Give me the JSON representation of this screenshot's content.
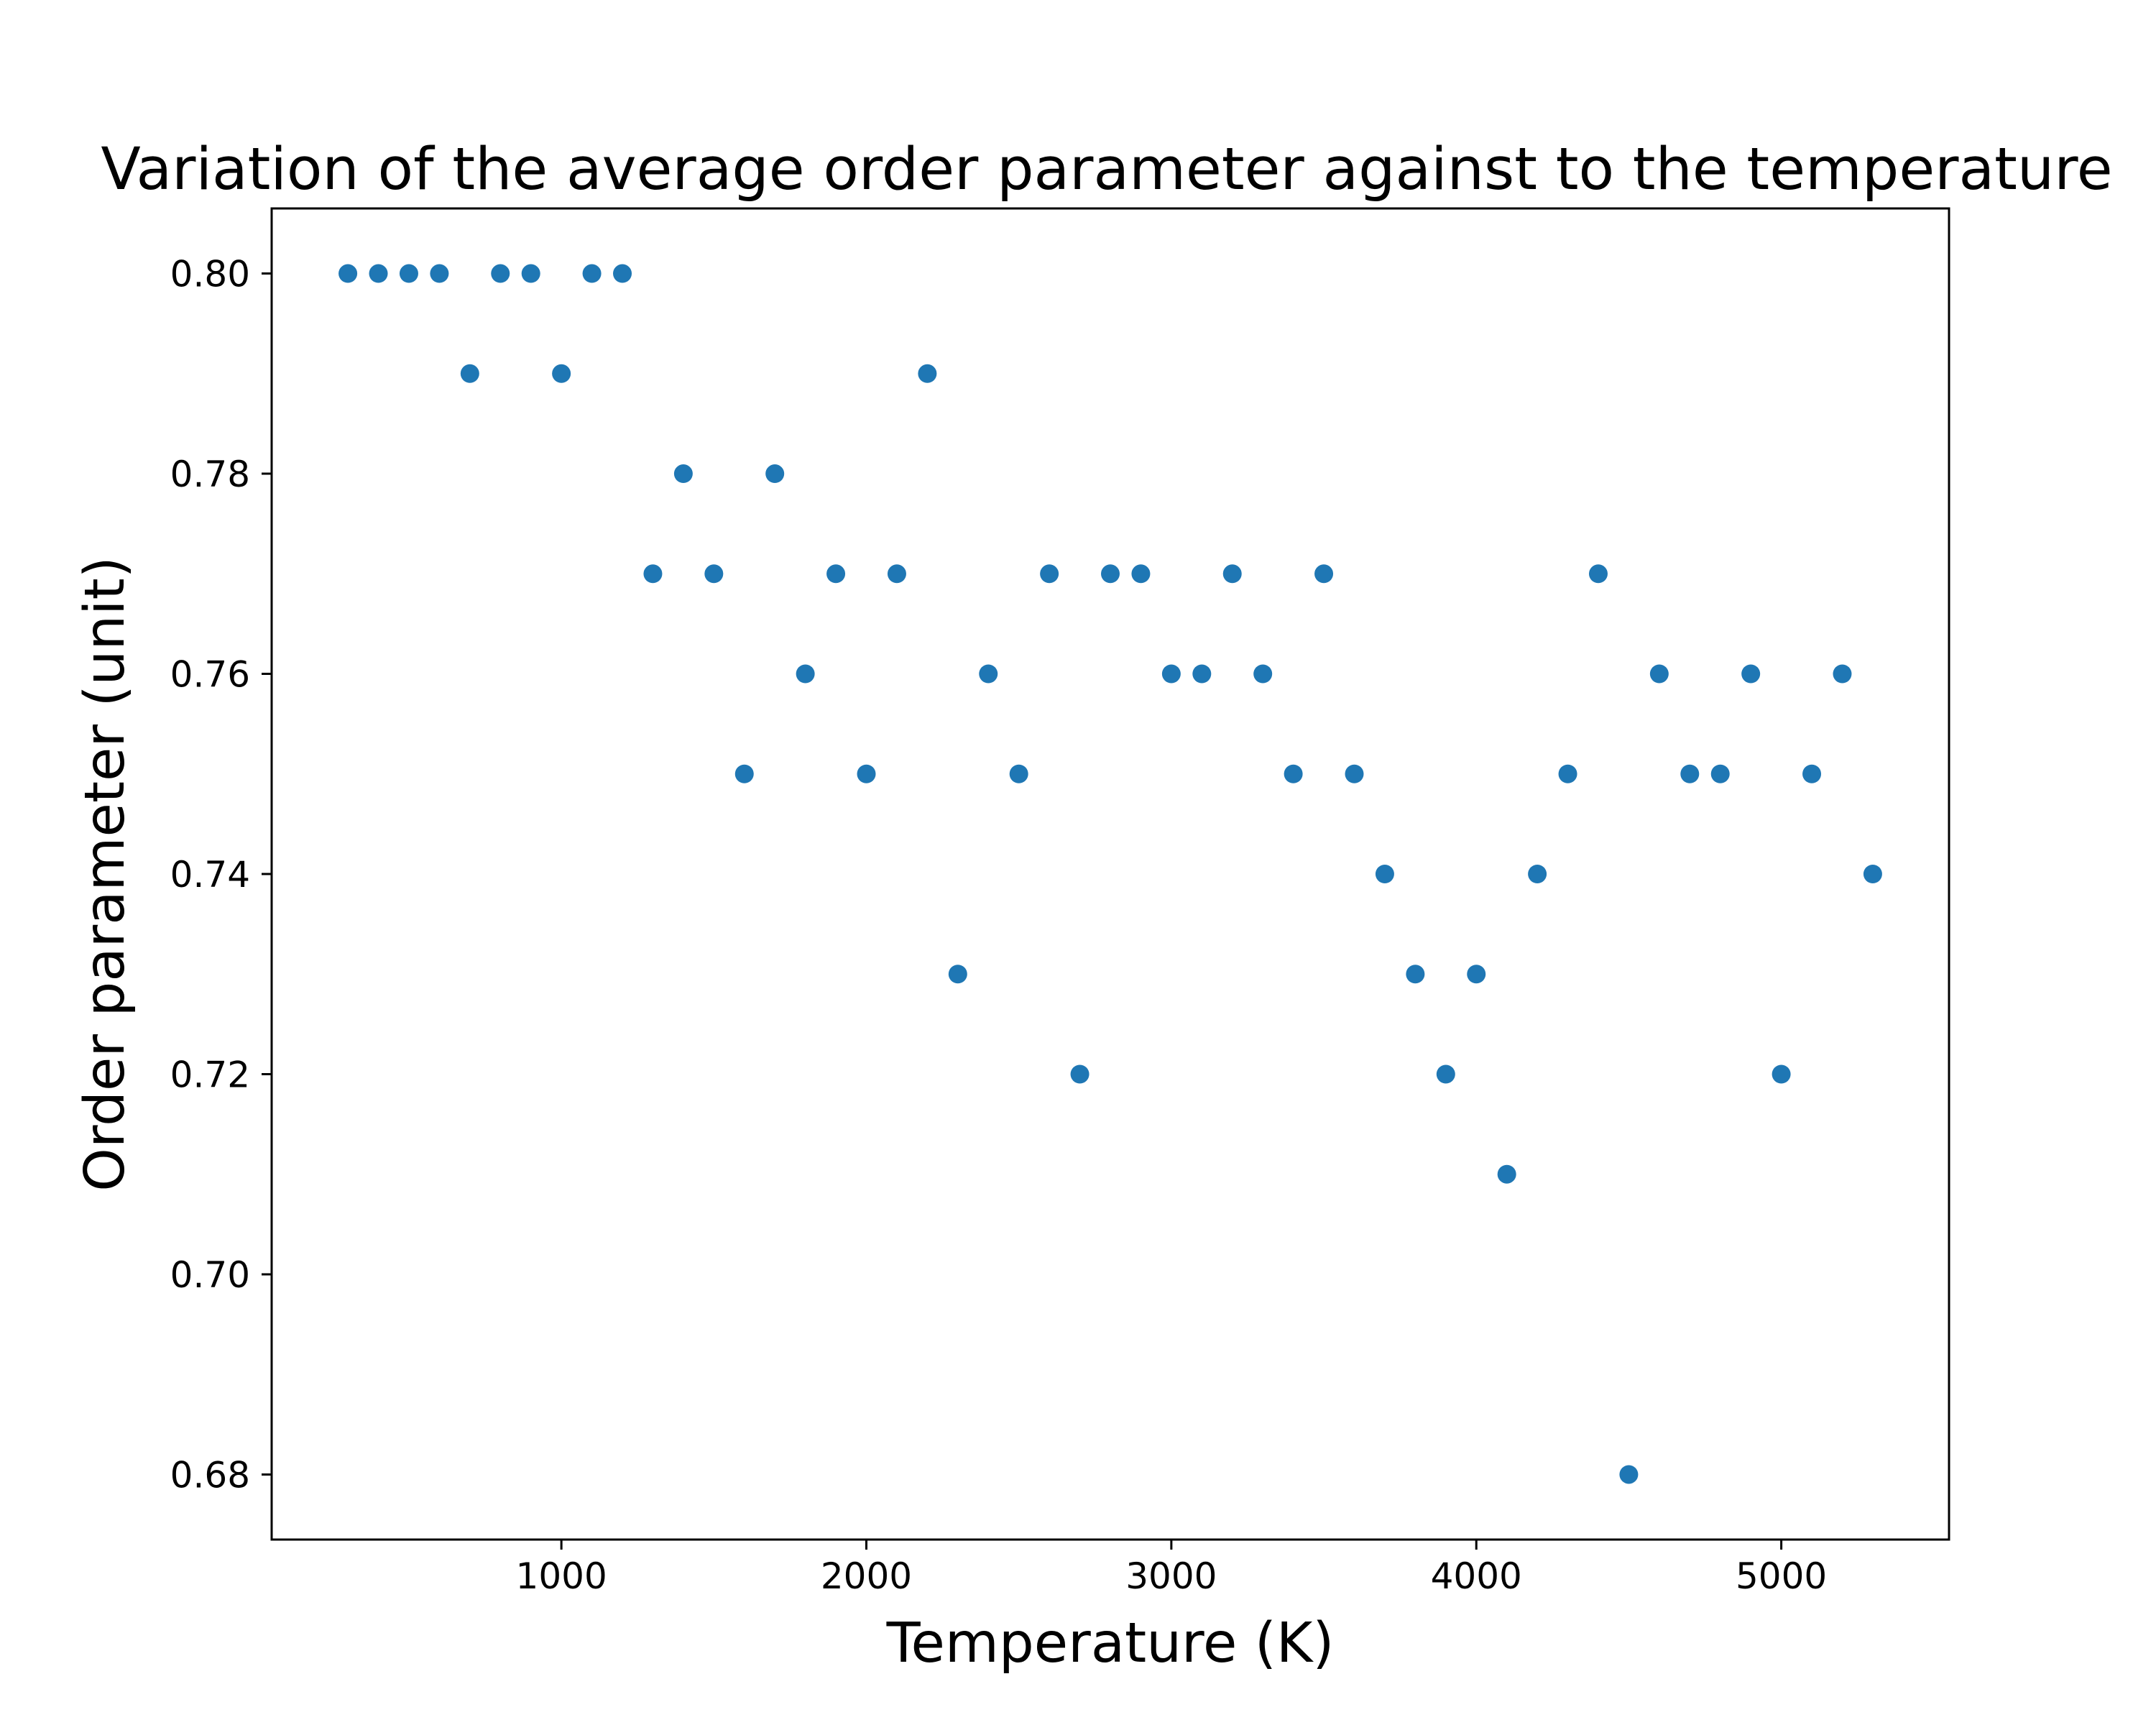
{
  "chart_data": {
    "type": "scatter",
    "title": "Variation of the average order parameter against to the temperature",
    "xlabel": "Temperature (K)",
    "ylabel": "Order parameter (unit)",
    "xlim": [
      50,
      5550
    ],
    "ylim": [
      0.6735,
      0.8065
    ],
    "xticks": [
      1000,
      2000,
      3000,
      4000,
      5000
    ],
    "xtick_labels": [
      "1000",
      "2000",
      "3000",
      "4000",
      "5000"
    ],
    "yticks": [
      0.68,
      0.7,
      0.72,
      0.74,
      0.76,
      0.78,
      0.8
    ],
    "ytick_labels": [
      "0.68",
      "0.70",
      "0.72",
      "0.74",
      "0.76",
      "0.78",
      "0.80"
    ],
    "grid": false,
    "marker_color": "#1f77b4",
    "x": [
      300,
      400,
      500,
      600,
      700,
      800,
      900,
      1000,
      1100,
      1200,
      1300,
      1400,
      1500,
      1600,
      1700,
      1800,
      1900,
      2000,
      2100,
      2200,
      2300,
      2400,
      2500,
      2600,
      2700,
      2800,
      2900,
      3000,
      3100,
      3200,
      3300,
      3400,
      3500,
      3600,
      3700,
      3800,
      3900,
      4000,
      4100,
      4200,
      4300,
      4400,
      4500,
      4600,
      4700,
      4800,
      4900,
      5000,
      5100,
      5200,
      5300
    ],
    "y": [
      0.8,
      0.8,
      0.8,
      0.8,
      0.79,
      0.8,
      0.8,
      0.79,
      0.8,
      0.8,
      0.77,
      0.78,
      0.77,
      0.75,
      0.78,
      0.76,
      0.77,
      0.75,
      0.77,
      0.79,
      0.73,
      0.76,
      0.75,
      0.77,
      0.72,
      0.77,
      0.77,
      0.76,
      0.76,
      0.77,
      0.76,
      0.75,
      0.77,
      0.75,
      0.74,
      0.73,
      0.72,
      0.73,
      0.71,
      0.74,
      0.75,
      0.77,
      0.68,
      0.76,
      0.75,
      0.75,
      0.76,
      0.72,
      0.75,
      0.76,
      0.74
    ]
  }
}
